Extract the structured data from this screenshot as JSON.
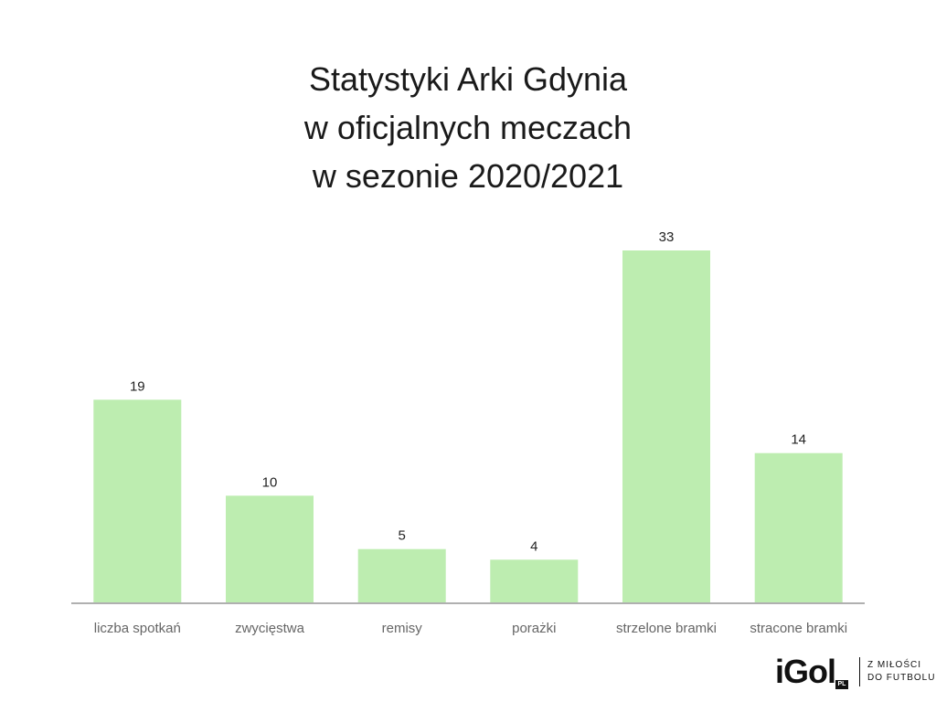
{
  "chart_data": {
    "type": "bar",
    "title_lines": [
      "Statystyki Arki Gdynia",
      "w oficjalnych meczach",
      "w sezonie 2020/2021"
    ],
    "categories": [
      "liczba spotkań",
      "zwycięstwa",
      "remisy",
      "porażki",
      "strzelone bramki",
      "stracone bramki"
    ],
    "values": [
      19,
      10,
      5,
      4,
      33,
      14
    ],
    "data_labels": [
      "19",
      "10",
      "5",
      "4",
      "33",
      "14"
    ],
    "ylim": [
      0,
      33
    ],
    "grid": false,
    "legend": "none",
    "bar_color": "#bdedb0",
    "axis_color": "#b0b0b0"
  },
  "branding": {
    "logo_text": "iGol",
    "logo_badge": "PL",
    "tagline_line1": "Z MIŁOŚCI",
    "tagline_line2": "DO FUTBOLU"
  }
}
